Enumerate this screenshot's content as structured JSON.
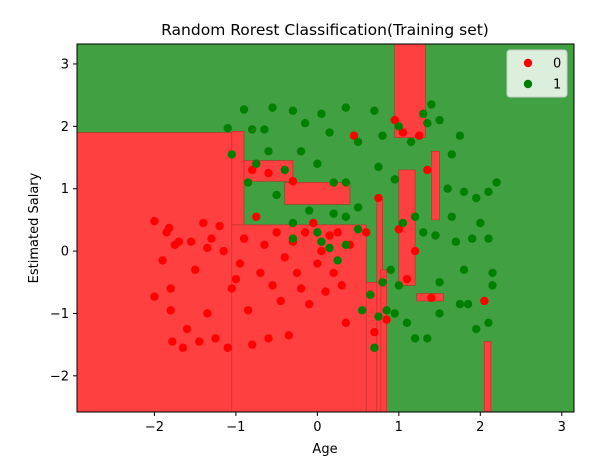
{
  "chart_data": {
    "type": "scatter",
    "title": "Random Rorest Classification(Training set)",
    "xlabel": "Age",
    "ylabel": "Estimated Salary",
    "xlim": [
      -2.95,
      3.15
    ],
    "ylim": [
      -2.58,
      3.32
    ],
    "xticks": [
      -2,
      -1,
      0,
      1,
      2,
      3
    ],
    "yticks": [
      -2,
      -1,
      0,
      1,
      2,
      3
    ],
    "grid": false,
    "legend": {
      "position": "top-right",
      "entries": [
        "0",
        "1"
      ]
    },
    "colors": {
      "class0_point": "#ff0000",
      "class1_point": "#008000",
      "class0_region": "#ff4040",
      "class1_region": "#41a041"
    },
    "background_regions": [
      {
        "class": "1",
        "x": [
          -2.95,
          3.15
        ],
        "y": [
          -2.58,
          3.32
        ]
      },
      {
        "class": "0",
        "x": [
          -2.95,
          -1.05
        ],
        "y": [
          -2.58,
          1.9
        ]
      },
      {
        "class": "0",
        "x": [
          -1.05,
          0.6
        ],
        "y": [
          -2.58,
          0.42
        ]
      },
      {
        "class": "0",
        "x": [
          -1.05,
          -0.9
        ],
        "y": [
          0.42,
          1.92
        ]
      },
      {
        "class": "0",
        "x": [
          -0.9,
          -0.3
        ],
        "y": [
          1.12,
          1.45
        ]
      },
      {
        "class": "0",
        "x": [
          -0.4,
          0.4
        ],
        "y": [
          0.75,
          1.1
        ]
      },
      {
        "class": "0",
        "x": [
          0.6,
          0.73
        ],
        "y": [
          -2.58,
          -0.5
        ]
      },
      {
        "class": "0",
        "x": [
          0.73,
          0.8
        ],
        "y": [
          -2.58,
          0.85
        ]
      },
      {
        "class": "0",
        "x": [
          0.78,
          0.85
        ],
        "y": [
          -2.58,
          -0.3
        ]
      },
      {
        "class": "0",
        "x": [
          0.95,
          1.33
        ],
        "y": [
          1.82,
          3.32
        ]
      },
      {
        "class": "0",
        "x": [
          1.0,
          1.2
        ],
        "y": [
          -0.55,
          1.3
        ]
      },
      {
        "class": "0",
        "x": [
          1.22,
          1.55
        ],
        "y": [
          -0.8,
          -0.68
        ]
      },
      {
        "class": "0",
        "x": [
          1.4,
          1.5
        ],
        "y": [
          0.5,
          1.6
        ]
      },
      {
        "class": "0",
        "x": [
          2.05,
          2.13
        ],
        "y": [
          -2.58,
          -1.45
        ]
      }
    ],
    "series": [
      {
        "name": "0",
        "points": [
          [
            -2.0,
            0.48
          ],
          [
            -2.0,
            -0.73
          ],
          [
            -1.85,
            0.3
          ],
          [
            -1.82,
            0.37
          ],
          [
            -1.8,
            -0.6
          ],
          [
            -1.8,
            -0.95
          ],
          [
            -1.78,
            -1.45
          ],
          [
            -1.75,
            0.1
          ],
          [
            -1.7,
            0.15
          ],
          [
            -1.65,
            -1.55
          ],
          [
            -1.6,
            -1.25
          ],
          [
            -1.55,
            0.15
          ],
          [
            -1.5,
            -0.3
          ],
          [
            -1.45,
            -1.45
          ],
          [
            -1.4,
            0.45
          ],
          [
            -1.35,
            -1.0
          ],
          [
            -1.3,
            0.2
          ],
          [
            -1.25,
            -1.4
          ],
          [
            -1.2,
            0.4
          ],
          [
            -1.15,
            0.0
          ],
          [
            -1.1,
            -1.55
          ],
          [
            -1.05,
            -0.6
          ],
          [
            -1.0,
            -0.45
          ],
          [
            -0.95,
            -0.2
          ],
          [
            -0.9,
            0.2
          ],
          [
            -0.85,
            -0.95
          ],
          [
            -0.8,
            -1.5
          ],
          [
            -0.75,
            0.55
          ],
          [
            -0.7,
            -0.35
          ],
          [
            -0.65,
            0.1
          ],
          [
            -0.6,
            -1.4
          ],
          [
            -0.55,
            -0.55
          ],
          [
            -0.5,
            0.3
          ],
          [
            -0.45,
            -0.8
          ],
          [
            -0.4,
            -0.1
          ],
          [
            -0.35,
            -1.35
          ],
          [
            -0.3,
            0.15
          ],
          [
            -0.25,
            -0.35
          ],
          [
            -0.2,
            -0.6
          ],
          [
            -0.15,
            0.3
          ],
          [
            -0.1,
            -0.85
          ],
          [
            -0.05,
            0.45
          ],
          [
            0.0,
            -0.2
          ],
          [
            0.05,
            0.0
          ],
          [
            0.1,
            -0.65
          ],
          [
            0.15,
            0.25
          ],
          [
            0.2,
            -0.35
          ],
          [
            0.25,
            0.3
          ],
          [
            0.3,
            -0.55
          ],
          [
            0.35,
            -1.15
          ],
          [
            0.4,
            0.1
          ],
          [
            0.45,
            1.85
          ],
          [
            0.6,
            0.3
          ],
          [
            0.75,
            0.85
          ],
          [
            0.85,
            -1.1
          ],
          [
            0.95,
            2.1
          ],
          [
            1.0,
            0.35
          ],
          [
            1.05,
            1.9
          ],
          [
            1.1,
            -0.45
          ],
          [
            1.2,
            0.0
          ],
          [
            1.25,
            1.85
          ],
          [
            1.35,
            1.3
          ],
          [
            1.4,
            -0.75
          ],
          [
            2.05,
            -0.8
          ],
          [
            -1.9,
            -0.15
          ],
          [
            -1.35,
            0.05
          ],
          [
            -0.6,
            1.25
          ],
          [
            -0.3,
            1.12
          ],
          [
            -0.8,
            1.3
          ],
          [
            0.7,
            -1.3
          ]
        ]
      },
      {
        "name": "1",
        "points": [
          [
            -1.1,
            1.97
          ],
          [
            -0.9,
            2.27
          ],
          [
            -0.8,
            1.95
          ],
          [
            -0.65,
            1.95
          ],
          [
            -0.55,
            2.3
          ],
          [
            -0.3,
            2.25
          ],
          [
            -0.15,
            2.05
          ],
          [
            0.05,
            2.2
          ],
          [
            0.15,
            1.9
          ],
          [
            0.35,
            2.3
          ],
          [
            0.5,
            1.75
          ],
          [
            0.7,
            2.25
          ],
          [
            0.8,
            1.85
          ],
          [
            1.0,
            2.0
          ],
          [
            1.15,
            1.75
          ],
          [
            1.3,
            2.2
          ],
          [
            1.4,
            2.35
          ],
          [
            1.5,
            2.1
          ],
          [
            1.65,
            1.55
          ],
          [
            1.75,
            1.85
          ],
          [
            1.35,
            2.05
          ],
          [
            -1.05,
            1.55
          ],
          [
            -0.75,
            1.4
          ],
          [
            -0.6,
            1.6
          ],
          [
            -0.4,
            1.3
          ],
          [
            -0.2,
            1.6
          ],
          [
            0.0,
            1.4
          ],
          [
            0.2,
            1.1
          ],
          [
            0.35,
            1.1
          ],
          [
            -0.85,
            1.1
          ],
          [
            -0.5,
            0.9
          ],
          [
            -0.3,
            0.45
          ],
          [
            -0.1,
            0.65
          ],
          [
            0.2,
            0.6
          ],
          [
            0.35,
            0.55
          ],
          [
            0.5,
            0.7
          ],
          [
            0.75,
            1.35
          ],
          [
            0.95,
            1.15
          ],
          [
            1.2,
            0.55
          ],
          [
            1.05,
            0.45
          ],
          [
            1.3,
            0.3
          ],
          [
            1.45,
            0.25
          ],
          [
            1.6,
            1.0
          ],
          [
            1.8,
            0.95
          ],
          [
            1.95,
            0.85
          ],
          [
            2.1,
            0.95
          ],
          [
            2.2,
            1.1
          ],
          [
            2.0,
            0.45
          ],
          [
            1.7,
            0.15
          ],
          [
            1.9,
            0.2
          ],
          [
            2.1,
            0.2
          ],
          [
            1.8,
            -0.3
          ],
          [
            2.15,
            -0.35
          ],
          [
            1.5,
            -0.5
          ],
          [
            1.85,
            -0.85
          ],
          [
            1.95,
            -1.25
          ],
          [
            2.1,
            -1.15
          ],
          [
            2.15,
            -0.55
          ],
          [
            1.2,
            -1.4
          ],
          [
            1.35,
            -1.4
          ],
          [
            1.5,
            -1.0
          ],
          [
            1.1,
            -1.15
          ],
          [
            0.95,
            -1.0
          ],
          [
            0.85,
            -0.95
          ],
          [
            0.75,
            -1.05
          ],
          [
            0.7,
            -1.55
          ],
          [
            0.65,
            -0.7
          ],
          [
            0.55,
            -0.95
          ],
          [
            0.9,
            -0.3
          ],
          [
            1.0,
            -0.55
          ],
          [
            0.5,
            0.35
          ],
          [
            0.35,
            0.1
          ],
          [
            0.15,
            0.05
          ],
          [
            0.0,
            0.3
          ],
          [
            0.25,
            -0.15
          ],
          [
            -0.3,
            0.2
          ],
          [
            0.05,
            0.15
          ],
          [
            1.65,
            0.55
          ],
          [
            1.75,
            -0.85
          ],
          [
            0.8,
            -0.5
          ]
        ]
      }
    ]
  }
}
